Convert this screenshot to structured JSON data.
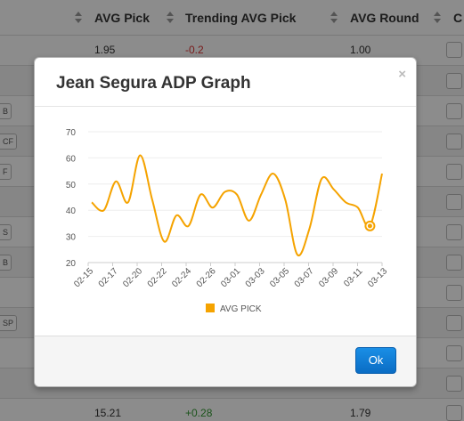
{
  "table": {
    "headers": [
      {
        "label": ""
      },
      {
        "label": "AVG Pick"
      },
      {
        "label": "Trending AVG Pick"
      },
      {
        "label": "AVG Round"
      },
      {
        "label": "C"
      }
    ],
    "first_row": {
      "avg_pick": "1.95",
      "trend": "-0.2",
      "avg_round": "1.00"
    },
    "last_row": {
      "avg_pick": "15.21",
      "trend": "+0.28",
      "avg_round": "1.79"
    },
    "position_tags": [
      "",
      "B",
      "CF",
      "F",
      "",
      "S",
      "B",
      "",
      "SP",
      "",
      ""
    ]
  },
  "modal": {
    "title": "Jean Segura ADP Graph",
    "close": "×",
    "ok_label": "Ok"
  },
  "chart_data": {
    "type": "line",
    "title": "",
    "xlabel": "",
    "ylabel": "",
    "ylim": [
      20,
      70
    ],
    "yticks": [
      "70",
      "60",
      "50",
      "40",
      "30",
      "20"
    ],
    "xticks": [
      "02-15",
      "02-17",
      "02-20",
      "02-22",
      "02-24",
      "02-26",
      "03-01",
      "03-03",
      "03-05",
      "03-07",
      "03-09",
      "03-11",
      "03-13"
    ],
    "series": [
      {
        "name": "AVG PICK",
        "color": "#f5a300",
        "values": [
          43,
          40,
          51,
          43,
          61,
          44,
          28,
          38,
          34,
          46,
          41,
          47,
          46,
          36,
          46,
          54,
          44,
          23,
          33,
          52,
          48,
          43,
          41,
          34,
          54
        ]
      }
    ],
    "legend": "bottom"
  }
}
